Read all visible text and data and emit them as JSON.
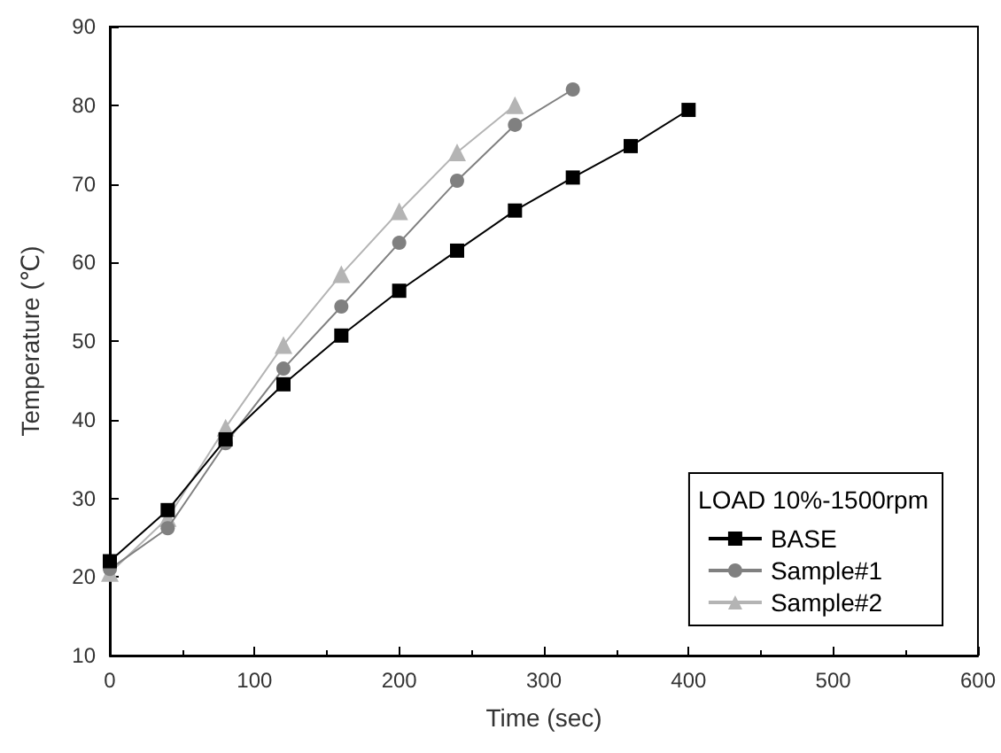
{
  "chart_data": {
    "type": "line",
    "xlabel": "Time (sec)",
    "ylabel": "Temperature (℃)",
    "legend_title": "LOAD 10%-1500rpm",
    "legend": "bottom right",
    "grid": false,
    "xlim": [
      0,
      600
    ],
    "xticks": [
      0,
      100,
      200,
      300,
      400,
      500,
      600
    ],
    "ylim": [
      10,
      90
    ],
    "yticks": [
      10,
      20,
      30,
      40,
      50,
      60,
      70,
      80,
      90
    ],
    "series": [
      {
        "name": "BASE",
        "color": "#000000",
        "marker": "square",
        "x": [
          0,
          40,
          80,
          120,
          160,
          200,
          240,
          280,
          320,
          360,
          400
        ],
        "values": [
          22,
          28.5,
          37.5,
          44.5,
          50.7,
          56.4,
          61.5,
          66.6,
          70.8,
          74.8,
          79.4
        ]
      },
      {
        "name": "Sample#1",
        "color": "#808080",
        "marker": "circle",
        "x": [
          0,
          40,
          80,
          120,
          160,
          200,
          240,
          280,
          320
        ],
        "values": [
          21,
          26.2,
          37,
          46.5,
          54.4,
          62.5,
          70.4,
          77.5,
          82
        ]
      },
      {
        "name": "Sample#2",
        "color": "#b4b4b4",
        "marker": "triangle",
        "x": [
          0,
          40,
          80,
          120,
          160,
          200,
          240,
          280
        ],
        "values": [
          20.5,
          27.5,
          39,
          49.5,
          58.5,
          66.5,
          74,
          80
        ]
      }
    ]
  }
}
